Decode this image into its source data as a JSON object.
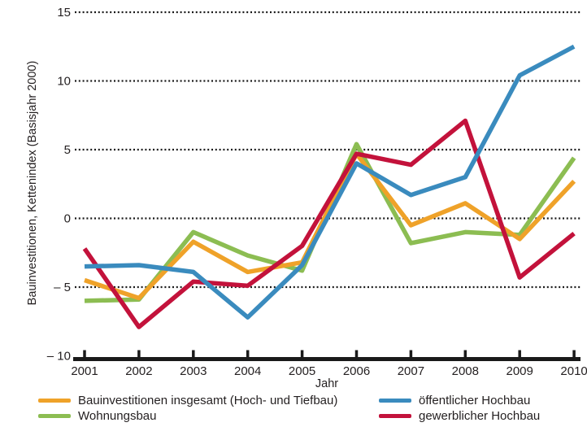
{
  "figure": {
    "background": "#ffffff",
    "text_color": "#231f20",
    "axis_color": "#1a1a1a"
  },
  "chart_data": {
    "type": "line",
    "title": "",
    "xlabel": "Jahr",
    "ylabel": "Bauinvestitionen, Kettenindex (Basisjahr 2000)",
    "x": [
      2001,
      2002,
      2003,
      2004,
      2005,
      2006,
      2007,
      2008,
      2009,
      2010
    ],
    "x_tick_labels": [
      "2001",
      "2002",
      "2003",
      "2004",
      "2005",
      "2006",
      "2007",
      "2008",
      "2009",
      "2010"
    ],
    "ylim": [
      -10,
      15
    ],
    "yticks": [
      15,
      10,
      5,
      0,
      -5,
      -10
    ],
    "ytick_labels": [
      "15",
      "10",
      "5",
      "0",
      "– 5",
      "– 10"
    ],
    "gridline_values": [
      15,
      10,
      5,
      0,
      -5
    ],
    "grid": "horizontal dotted",
    "legend_position": "bottom",
    "series": [
      {
        "name": "Bauinvestitionen insgesamt (Hoch- und Tiefbau)",
        "color": "#EFA229",
        "values": [
          -4.5,
          -5.8,
          -1.7,
          -3.9,
          -3.2,
          4.7,
          -0.5,
          1.1,
          -1.5,
          2.7
        ]
      },
      {
        "name": "Wohnungsbau",
        "color": "#8CBD52",
        "values": [
          -6.0,
          -5.9,
          -1.0,
          -2.7,
          -3.8,
          5.4,
          -1.8,
          -1.0,
          -1.2,
          4.4
        ]
      },
      {
        "name": "öffentlicher Hochbau",
        "color": "#3A8BBE",
        "values": [
          -3.5,
          -3.4,
          -3.9,
          -7.2,
          -3.4,
          4.0,
          1.7,
          3.0,
          10.4,
          12.5
        ]
      },
      {
        "name": "gewerblicher Hochbau",
        "color": "#C3123B",
        "values": [
          -2.2,
          -7.9,
          -4.6,
          -4.9,
          -2.0,
          4.7,
          3.9,
          7.1,
          -4.3,
          -1.1
        ]
      }
    ],
    "draw_order": [
      1,
      0,
      3,
      2
    ],
    "line_width": 5.5
  }
}
